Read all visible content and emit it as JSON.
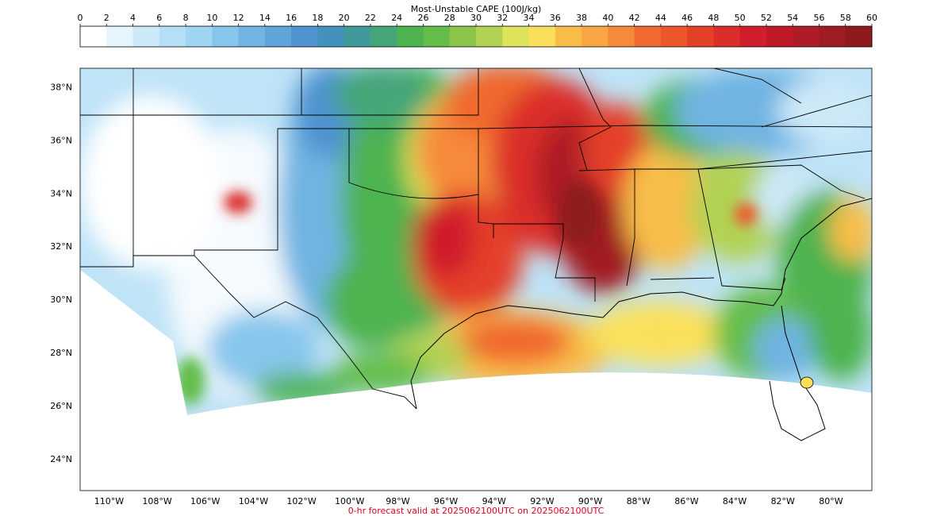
{
  "colorbar": {
    "title": "Most-Unstable CAPE (100J/kg)",
    "ticks": [
      "0",
      "2",
      "4",
      "6",
      "8",
      "10",
      "12",
      "14",
      "16",
      "18",
      "20",
      "22",
      "24",
      "26",
      "28",
      "30",
      "32",
      "34",
      "36",
      "38",
      "40",
      "42",
      "44",
      "46",
      "48",
      "50",
      "52",
      "54",
      "56",
      "58",
      "60"
    ],
    "colors": [
      "#ffffff",
      "#e6f5fd",
      "#cde9f8",
      "#b4dff6",
      "#9dd5f3",
      "#87c6ec",
      "#6fb4e2",
      "#5fa5d9",
      "#4f93d0",
      "#4391bd",
      "#419a9a",
      "#44a678",
      "#4db34f",
      "#63bd48",
      "#8cc44a",
      "#b1d252",
      "#dde35a",
      "#fae05a",
      "#f8bd48",
      "#f7a643",
      "#f68a3b",
      "#f0692f",
      "#ec562b",
      "#e44129",
      "#db2e2a",
      "#d01e2c",
      "#bf1a28",
      "#ad1c27",
      "#a01c24",
      "#8f1a1e"
    ]
  },
  "map": {
    "lat_labels": [
      "38°N",
      "36°N",
      "34°N",
      "32°N",
      "30°N",
      "28°N",
      "26°N",
      "24°N"
    ],
    "lon_labels": [
      "110°W",
      "108°W",
      "106°W",
      "104°W",
      "102°W",
      "100°W",
      "98°W",
      "96°W",
      "94°W",
      "92°W",
      "90°W",
      "88°W",
      "86°W",
      "84°W",
      "82°W",
      "80°W"
    ],
    "lon_range": [
      -111.2,
      -78.3
    ],
    "lat_range": [
      22.8,
      38.7
    ]
  },
  "footer": {
    "text": "0-hr forecast valid at 2025062100UTC on 2025062100UTC",
    "color": "#e3001b"
  }
}
